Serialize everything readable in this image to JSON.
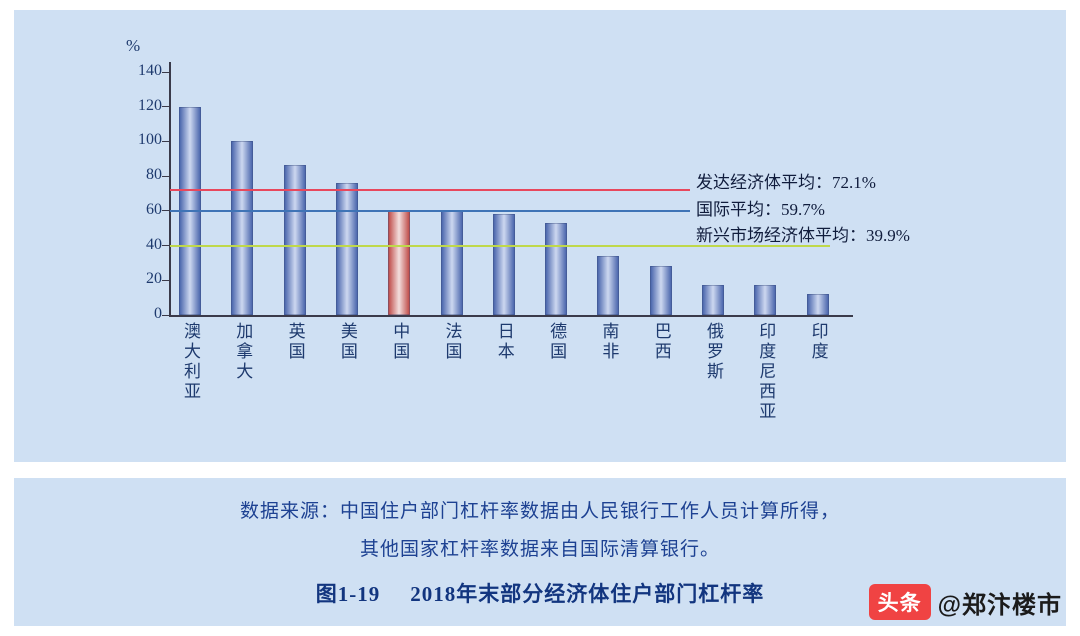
{
  "colors": {
    "panel_bg": "#cfe0f3",
    "watermark_red": "#f04343"
  },
  "chart_data": {
    "type": "bar",
    "title": "图1-19 2018年末部分经济体住户部门杠杆率",
    "unit_label": "%",
    "ylim": [
      0,
      140
    ],
    "yticks": [
      0,
      20,
      40,
      60,
      80,
      100,
      120,
      140
    ],
    "categories": [
      "澳大利亚",
      "加拿大",
      "英国",
      "美国",
      "中国",
      "法国",
      "日本",
      "德国",
      "南非",
      "巴西",
      "俄罗斯",
      "印度尼西亚",
      "印度"
    ],
    "values": [
      120,
      100,
      86.5,
      76,
      60.4,
      60,
      58,
      53,
      34,
      28,
      17.5,
      17,
      12
    ],
    "highlight_index": 4,
    "highlight_category": "中国",
    "bar_color_edge": "#4d68ae",
    "bar_color_center": "#cdd8f0",
    "highlight_edge": "#c0504d",
    "highlight_center": "#f3dedd",
    "grid": false,
    "reference_lines": [
      {
        "label": "发达经济体平均：72.1%",
        "value": 72.1,
        "color": "#e8485c"
      },
      {
        "label": "国际平均：59.7%",
        "value": 59.7,
        "color": "#3f74b6"
      },
      {
        "label": "新兴市场经济体平均：39.9%",
        "value": 39.9,
        "color": "#bfd84a"
      }
    ]
  },
  "source_note": {
    "line1": "数据来源：中国住户部门杠杆率数据由人民银行工作人员计算所得，",
    "line2": "其他国家杠杆率数据来自国际清算银行。"
  },
  "caption": {
    "prefix": "图1-19",
    "title": "2018年末部分经济体住户部门杠杆率"
  },
  "watermark": {
    "badge": "头条",
    "handle": "@郑汴楼市"
  }
}
